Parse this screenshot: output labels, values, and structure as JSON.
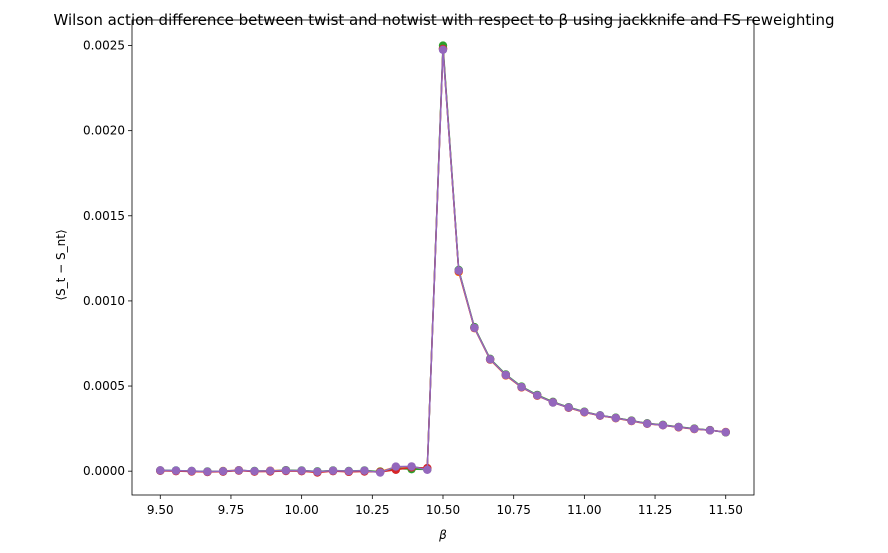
{
  "chart_data": {
    "type": "line",
    "title": "Wilson action difference between twist and notwist with respect to β using jackknife and FS reweighting",
    "xlabel": "β",
    "ylabel": "⟨S_t − S_nt⟩",
    "xlim": [
      9.4,
      11.6
    ],
    "ylim": [
      -0.00014,
      0.00265
    ],
    "xticks": [
      "9.50",
      "9.75",
      "10.00",
      "10.25",
      "10.50",
      "10.75",
      "11.00",
      "11.25",
      "11.50"
    ],
    "yticks": [
      "0.0000",
      "0.0005",
      "0.0010",
      "0.0015",
      "0.0020",
      "0.0025"
    ],
    "grid": false,
    "x": [
      9.5,
      9.5556,
      9.6111,
      9.6667,
      9.7222,
      9.7778,
      9.8333,
      9.8889,
      9.9444,
      10.0,
      10.0556,
      10.1111,
      10.1667,
      10.2222,
      10.2778,
      10.3333,
      10.3889,
      10.4444,
      10.5,
      10.5556,
      10.6111,
      10.6667,
      10.7222,
      10.7778,
      10.8333,
      10.8889,
      10.9444,
      11.0,
      11.0556,
      11.1111,
      11.1667,
      11.2222,
      11.2778,
      11.3333,
      11.3889,
      11.4444,
      11.5
    ],
    "series": [
      {
        "color": "#1f77b4",
        "values": [
          5e-06,
          4e-06,
          0.0,
          -3e-06,
          -2e-06,
          5e-06,
          0.0,
          1e-06,
          3e-06,
          2e-06,
          -3e-06,
          2e-06,
          -1e-06,
          3e-06,
          -4e-06,
          2e-05,
          2.5e-05,
          1.5e-05,
          0.002485,
          0.00118,
          0.000843,
          0.000658,
          0.000566,
          0.000494,
          0.000446,
          0.000403,
          0.000374,
          0.000348,
          0.000327,
          0.000313,
          0.000296,
          0.00028,
          0.000271,
          0.000259,
          0.000249,
          0.00024,
          0.000229
        ]
      },
      {
        "color": "#ff7f0e",
        "values": [
          4e-06,
          2e-06,
          -1e-06,
          -4e-06,
          1e-06,
          6e-06,
          -2e-06,
          3e-06,
          5e-06,
          1e-06,
          -6e-06,
          3e-06,
          -3e-06,
          2e-06,
          -2e-06,
          2.5e-05,
          2.2e-05,
          1.2e-05,
          0.00248,
          0.00117,
          0.00084,
          0.000655,
          0.000562,
          0.000492,
          0.000443,
          0.000405,
          0.000372,
          0.000345,
          0.000326,
          0.000311,
          0.000294,
          0.000278,
          0.00027,
          0.000258,
          0.000247,
          0.00024,
          0.00023
        ]
      },
      {
        "color": "#2ca02c",
        "values": [
          3e-06,
          3e-06,
          1e-06,
          -2e-06,
          0.0,
          4e-06,
          1e-06,
          0.0,
          6e-06,
          4e-06,
          -1e-06,
          4e-06,
          1e-06,
          4e-06,
          -3e-06,
          1.5e-05,
          1.2e-05,
          1e-05,
          0.0025,
          0.001182,
          0.000846,
          0.00066,
          0.000568,
          0.000497,
          0.000448,
          0.000407,
          0.000376,
          0.000349,
          0.000328,
          0.000314,
          0.000297,
          0.000281,
          0.000272,
          0.00026,
          0.00025,
          0.000241,
          0.000228
        ]
      },
      {
        "color": "#d62728",
        "values": [
          2e-06,
          0.0,
          -2e-06,
          -5e-06,
          -3e-06,
          3e-06,
          -3e-06,
          -2e-06,
          1e-06,
          0.0,
          -8e-06,
          0.0,
          -4e-06,
          -2e-06,
          -5e-06,
          8e-06,
          2.2e-05,
          1.8e-05,
          0.00248,
          0.001175,
          0.000841,
          0.000656,
          0.000564,
          0.000493,
          0.000444,
          0.000404,
          0.000373,
          0.000347,
          0.000326,
          0.000312,
          0.000295,
          0.000279,
          0.00027,
          0.000258,
          0.000248,
          0.00024,
          0.000229
        ]
      },
      {
        "color": "#9467bd",
        "values": [
          4e-06,
          3e-06,
          1e-06,
          -3e-06,
          0.0,
          5e-06,
          0.0,
          2e-06,
          4e-06,
          3e-06,
          -3e-06,
          3e-06,
          0.0,
          3e-06,
          -8e-06,
          2.7e-05,
          2.8e-05,
          8e-06,
          0.002475,
          0.001178,
          0.000842,
          0.000657,
          0.000565,
          0.000494,
          0.000445,
          0.000404,
          0.000374,
          0.000347,
          0.000327,
          0.000312,
          0.000295,
          0.000279,
          0.00027,
          0.000259,
          0.000248,
          0.00024,
          0.000229
        ]
      }
    ]
  }
}
